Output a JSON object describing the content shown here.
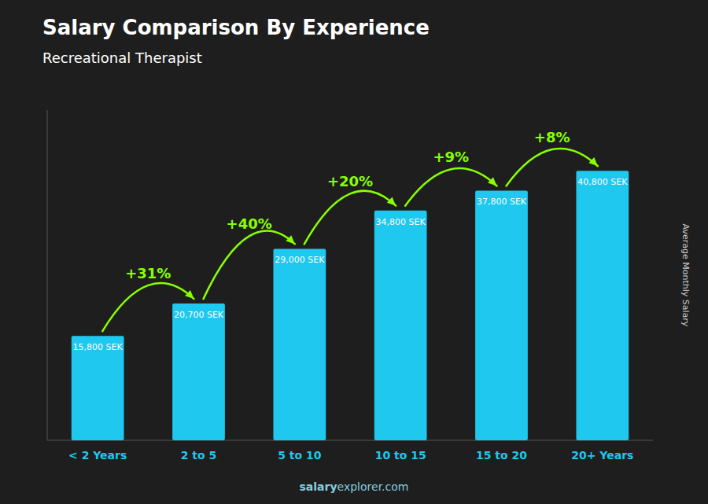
{
  "chart_data": {
    "type": "bar",
    "title": "Salary Comparison By Experience",
    "subtitle": "Recreational Therapist",
    "categories": [
      "< 2 Years",
      "2 to 5",
      "5 to 10",
      "10 to 15",
      "15 to 20",
      "20+ Years"
    ],
    "values": [
      15800,
      20700,
      29000,
      34800,
      37800,
      40800
    ],
    "value_labels": [
      "15,800 SEK",
      "20,700 SEK",
      "29,000 SEK",
      "34,800 SEK",
      "37,800 SEK",
      "40,800 SEK"
    ],
    "data_labels": true,
    "color": "#1EC8EE",
    "ylim": [
      0,
      50000
    ],
    "tick_labels": "x",
    "grid": false,
    "y_label": "Average Monthly Salary",
    "annotations": [
      {
        "text": "+31%",
        "color": "#88FF00"
      },
      {
        "text": "+40%",
        "color": "#88FF00"
      },
      {
        "text": "+20%",
        "color": "#88FF00"
      },
      {
        "text": "+9%",
        "color": "#88FF00"
      },
      {
        "text": "+8%",
        "color": "#88FF00"
      }
    ],
    "watermark": [
      "salary",
      "explorer.com"
    ]
  }
}
